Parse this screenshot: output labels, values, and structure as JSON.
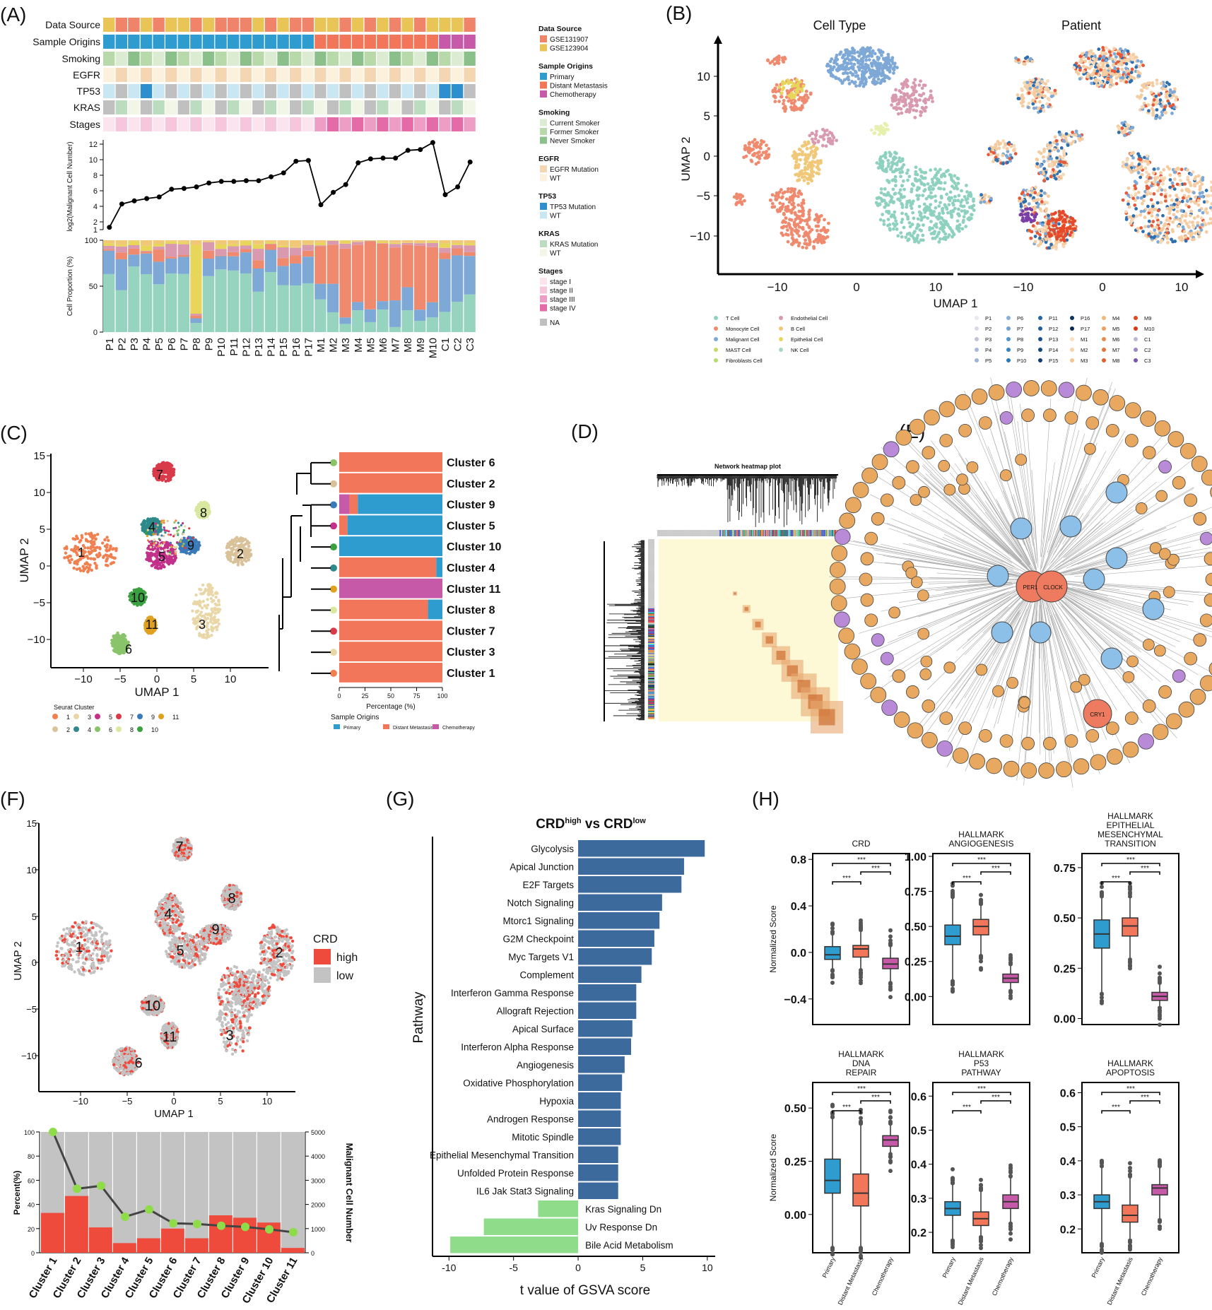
{
  "panel_letters": [
    "(A)",
    "(B)",
    "(C)",
    "(D)",
    "(E)",
    "(F)",
    "(G)",
    "(H)"
  ],
  "colors": {
    "tcell": "#8fd1bf",
    "myeloid": "#f08a6e",
    "malignant": "#7ea8d6",
    "mast": "#c8d86a",
    "fibro": "#b5dd6e",
    "endo": "#d99ab0",
    "bcell": "#f0c878",
    "epi": "#e8d65a",
    "nk": "#a6d8c0",
    "primary": "#2e9ccf",
    "metastasis": "#f2775a",
    "chemo": "#c65aa9",
    "crd_high": "#ef4b3d",
    "crd_low": "#c3c3c3",
    "up": "#3d6a9c",
    "down": "#8fdc8a"
  },
  "panelA": {
    "rows": [
      "Data Source",
      "Sample Origins",
      "Smoking",
      "EGFR",
      "TP53",
      "KRAS",
      "Stages"
    ],
    "ylabel_top": "log2(Malignant Cell Number)",
    "ylabel_bottom": "Cell Proportion (%)",
    "yticks_top": [
      "1",
      "2",
      "4",
      "6",
      "8",
      "10",
      "12"
    ],
    "yticks_bottom": [
      "0",
      "50",
      "100"
    ],
    "samples": [
      "P1",
      "P2",
      "P3",
      "P4",
      "P5",
      "P6",
      "P7",
      "P8",
      "P9",
      "P10",
      "P11",
      "P12",
      "P13",
      "P14",
      "P15",
      "P16",
      "P17",
      "M1",
      "M2",
      "M3",
      "M4",
      "M5",
      "M6",
      "M7",
      "M8",
      "M9",
      "M10",
      "C1",
      "C2",
      "C3"
    ],
    "log2_cells": [
      1.3,
      4.3,
      4.7,
      5.0,
      5.2,
      6.2,
      6.3,
      6.5,
      7.0,
      7.2,
      7.2,
      7.3,
      7.3,
      7.8,
      8.3,
      9.8,
      9.9,
      4.2,
      5.8,
      6.8,
      9.6,
      10.1,
      10.2,
      10.2,
      11.2,
      11.3,
      12.2,
      5.5,
      6.5,
      9.7
    ],
    "legend": [
      {
        "title": "Data Source",
        "items": [
          [
            "GSE131907",
            "#f0846a"
          ],
          [
            "GSE123904",
            "#e8c556"
          ]
        ]
      },
      {
        "title": "Sample Origins",
        "items": [
          [
            "Primary",
            "#2e9ccf"
          ],
          [
            "Distant Metastasis",
            "#f2775a"
          ],
          [
            "Chemotherapy",
            "#c65aa9"
          ]
        ]
      },
      {
        "title": "Smoking",
        "items": [
          [
            "Current Smoker",
            "#dcecd3"
          ],
          [
            "Former Smoker",
            "#b8d9aa"
          ],
          [
            "Never Smoker",
            "#8cc08a"
          ]
        ]
      },
      {
        "title": "EGFR",
        "items": [
          [
            "EGFR Mutation",
            "#f5d6b3"
          ],
          [
            "WT",
            "#fbf1dc"
          ]
        ]
      },
      {
        "title": "TP53",
        "items": [
          [
            "TP53 Mutation",
            "#2e8fcf"
          ],
          [
            "WT",
            "#c9e6f3"
          ]
        ]
      },
      {
        "title": "KRAS",
        "items": [
          [
            "KRAS Mutation",
            "#bcdcc0"
          ],
          [
            "WT",
            "#f1f6e6"
          ]
        ]
      },
      {
        "title": "Stages",
        "items": [
          [
            "stage I",
            "#fbe4ee"
          ],
          [
            "stage II",
            "#f6c6dc"
          ],
          [
            "stage III",
            "#ee9dc5"
          ],
          [
            "stage IV",
            "#e46aa8"
          ],
          [
            "NA",
            "#c0c0c0"
          ]
        ]
      }
    ]
  },
  "panelB": {
    "titles": [
      "Cell Type",
      "Patient"
    ],
    "xlabel": "UMAP 1",
    "ylabel": "UMAP 2",
    "xticks": [
      "−10",
      "0",
      "10"
    ],
    "yticks": [
      "10",
      "5",
      "0",
      "−5",
      "−10"
    ],
    "celltype_legend": [
      [
        "T Cell",
        "#8fd1bf"
      ],
      [
        "Monocyte Cell",
        "#f08a6e"
      ],
      [
        "Malignant Cell",
        "#7ea8d6"
      ],
      [
        "MAST Cell",
        "#c8d86a"
      ],
      [
        "Fibroblasts Cell",
        "#b5dd6e"
      ],
      [
        "Endothelial Cell",
        "#d99ab0"
      ],
      [
        "B Cell",
        "#f0c878"
      ],
      [
        "Epithelial Cell",
        "#e8d65a"
      ],
      [
        "NK Cell",
        "#a6d8c0"
      ]
    ],
    "patient_legend": [
      "P1",
      "P2",
      "P3",
      "P4",
      "P5",
      "P6",
      "P7",
      "P8",
      "P9",
      "P10",
      "P11",
      "P12",
      "P13",
      "P14",
      "P15",
      "P16",
      "P17",
      "M1",
      "M2",
      "M3",
      "M4",
      "M5",
      "M6",
      "M7",
      "M8",
      "M9",
      "M10",
      "C1",
      "C2",
      "C3"
    ]
  },
  "panelC": {
    "xlabel": "UMAP 1",
    "ylabel": "UMAP 2",
    "xticks": [
      "−10",
      "−5",
      "0",
      "5",
      "10"
    ],
    "yticks": [
      "15",
      "10",
      "5",
      "0",
      "−5",
      "−10"
    ],
    "legend_title": "Seurat Cluster",
    "clusters": [
      "1",
      "2",
      "3",
      "4",
      "5",
      "6",
      "7",
      "8",
      "9",
      "10",
      "11"
    ],
    "bar_clusters": [
      "Cluster 6",
      "Cluster 2",
      "Cluster 9",
      "Cluster 5",
      "Cluster 10",
      "Cluster 4",
      "Cluster 11",
      "Cluster 8",
      "Cluster 7",
      "Cluster 3",
      "Cluster 1"
    ],
    "bar_xlabel": "Percentage (%)",
    "bar_xticks": [
      "0",
      "25",
      "50",
      "75",
      "100"
    ],
    "bar_legend_title": "Sample Origins",
    "bar_legend": [
      "Primary",
      "Distant Metastasis",
      "Chemotherapy"
    ]
  },
  "panelD": {
    "title": "Network heatmap plot"
  },
  "panelE": {
    "hubs": [
      "PER1",
      "CLOCK",
      "CRY1"
    ]
  },
  "panelF": {
    "xlabel": "UMAP 1",
    "ylabel": "UMAP 2",
    "xticks": [
      "−10",
      "−5",
      "0",
      "5",
      "10"
    ],
    "yticks": [
      "15",
      "10",
      "5",
      "0",
      "−5",
      "−10"
    ],
    "legend_title": "CRD",
    "legend": [
      "high",
      "low"
    ],
    "bar_ylabel": "Percent(%)",
    "bar_y2label": "Malignant Cell Number",
    "bar_yticks": [
      "0",
      "20",
      "40",
      "60",
      "80",
      "100"
    ],
    "bar_y2ticks": [
      "0",
      "1000",
      "2000",
      "3000",
      "4000",
      "5000"
    ],
    "clusters": [
      "Cluster 1",
      "Cluster 2",
      "Cluster 3",
      "Cluster 4",
      "Cluster 5",
      "Cluster 6",
      "Cluster 7",
      "Cluster 8",
      "Cluster 9",
      "Cluster 10",
      "Cluster 11"
    ]
  },
  "chart_data": [
    {
      "type": "bar",
      "panel": "F-bottom",
      "categories": [
        "Cluster 1",
        "Cluster 2",
        "Cluster 3",
        "Cluster 4",
        "Cluster 5",
        "Cluster 6",
        "Cluster 7",
        "Cluster 8",
        "Cluster 9",
        "Cluster 10",
        "Cluster 11"
      ],
      "series": [
        {
          "name": "high",
          "values": [
            33,
            47,
            21,
            8,
            12,
            20,
            12,
            31,
            29,
            25,
            4
          ]
        }
      ],
      "line_series": {
        "values": [
          5000,
          2650,
          2770,
          1490,
          1790,
          1220,
          1190,
          1120,
          1070,
          970,
          850
        ]
      },
      "ylim": [
        0,
        100
      ],
      "y2lim": [
        0,
        5000
      ]
    },
    {
      "type": "bar",
      "panel": "G",
      "title": "CRDhigh vs CRDlow",
      "xlabel": "t value of GSVA score",
      "ylabel": "Pathway",
      "categories": [
        "Glycolysis",
        "Apical Junction",
        "E2F Targets",
        "Notch Signaling",
        "Mtorc1 Signaling",
        "G2M Checkpoint",
        "Myc Targets V1",
        "Complement",
        "Interferon Gamma Response",
        "Allograft Rejection",
        "Apical Surface",
        "Interferon Alpha Response",
        "Angiogenesis",
        "Oxidative Phosphorylation",
        "Hypoxia",
        "Androgen Response",
        "Mitotic Spindle",
        "Epithelial Mesenchymal Transition",
        "Unfolded Protein Response",
        "IL6 Jak Stat3 Signaling",
        "Kras Signaling Dn",
        "Uv Response Dn",
        "Bile Acid Metabolism"
      ],
      "values": [
        9.8,
        8.2,
        8.0,
        6.5,
        6.3,
        5.9,
        5.7,
        4.9,
        4.5,
        4.5,
        4.2,
        4.1,
        3.6,
        3.4,
        3.3,
        3.3,
        3.3,
        3.1,
        3.1,
        3.1,
        -3.1,
        -7.3,
        -9.9
      ],
      "xticks": [
        "-10",
        "-5",
        "0",
        "5",
        "10"
      ],
      "xlim": [
        -11,
        10.5
      ]
    },
    {
      "type": "box",
      "panel": "H",
      "categories": [
        "Primary",
        "Distant Metastasis",
        "Chemotherapy"
      ],
      "ylabel": "Normalized Score",
      "sig": "***",
      "boxes": [
        {
          "title": "CRD",
          "ylim": [
            -0.62,
            0.85
          ],
          "yticks": [
            0.8,
            0.4,
            0.0,
            -0.4
          ],
          "ytick_labels": [
            "0.8",
            "0.4",
            "0.0",
            "−0.4"
          ],
          "stats": [
            [
              -0.14,
              -0.06,
              -0.02,
              0.05,
              0.15
            ],
            [
              -0.14,
              -0.04,
              0.03,
              0.06,
              0.18
            ],
            [
              -0.25,
              -0.14,
              -0.1,
              -0.05,
              0.05
            ]
          ]
        },
        {
          "title": "HALLMARK ANGIOGENESIS",
          "ylim": [
            -0.2,
            1.02
          ],
          "yticks": [
            1.0,
            0.75,
            0.5,
            0.25,
            0.0
          ],
          "ytick_labels": [
            "1.00",
            "0.75",
            "0.50",
            "0.25",
            "0.00"
          ],
          "stats": [
            [
              0.12,
              0.37,
              0.43,
              0.51,
              0.7
            ],
            [
              0.3,
              0.44,
              0.5,
              0.55,
              0.65
            ],
            [
              0.05,
              0.1,
              0.13,
              0.16,
              0.22
            ]
          ]
        },
        {
          "title": "HALLMARK EPITHELIAL MESENCHYMAL TRANSITION",
          "ylim": [
            -0.03,
            0.82
          ],
          "yticks": [
            0.75,
            0.5,
            0.25,
            0.0
          ],
          "ytick_labels": [
            "0.75",
            "0.50",
            "0.25",
            "0.00"
          ],
          "stats": [
            [
              0.13,
              0.35,
              0.42,
              0.49,
              0.6
            ],
            [
              0.3,
              0.41,
              0.46,
              0.5,
              0.6
            ],
            [
              0.06,
              0.09,
              0.11,
              0.13,
              0.17
            ]
          ]
        },
        {
          "title": "HALLMARK DNA REPAIR",
          "ylim": [
            -0.18,
            0.62
          ],
          "yticks": [
            0.5,
            0.25,
            0.0
          ],
          "ytick_labels": [
            "0.50",
            "0.25",
            "0.00"
          ],
          "stats": [
            [
              -0.15,
              0.1,
              0.16,
              0.26,
              0.45
            ],
            [
              -0.15,
              0.04,
              0.1,
              0.19,
              0.42
            ],
            [
              0.29,
              0.32,
              0.35,
              0.37,
              0.42
            ]
          ]
        },
        {
          "title": "HALLMARK P53 PATHWAY",
          "ylim": [
            0.14,
            0.64
          ],
          "yticks": [
            0.6,
            0.5,
            0.4,
            0.3,
            0.2
          ],
          "ytick_labels": [
            "0.6",
            "0.5",
            "0.4",
            "0.3",
            "0.2"
          ],
          "stats": [
            [
              0.18,
              0.25,
              0.27,
              0.29,
              0.34
            ],
            [
              0.19,
              0.22,
              0.24,
              0.26,
              0.32
            ],
            [
              0.23,
              0.27,
              0.29,
              0.31,
              0.36
            ]
          ]
        },
        {
          "title": "HALLMARK APOPTOSIS",
          "ylim": [
            0.13,
            0.63
          ],
          "yticks": [
            0.6,
            0.5,
            0.4,
            0.3,
            0.2
          ],
          "ytick_labels": [
            "0.6",
            "0.5",
            "0.4",
            "0.3",
            "0.2"
          ],
          "stats": [
            [
              0.16,
              0.26,
              0.28,
              0.3,
              0.38
            ],
            [
              0.17,
              0.22,
              0.24,
              0.27,
              0.35
            ],
            [
              0.23,
              0.3,
              0.32,
              0.33,
              0.38
            ]
          ]
        }
      ]
    }
  ]
}
